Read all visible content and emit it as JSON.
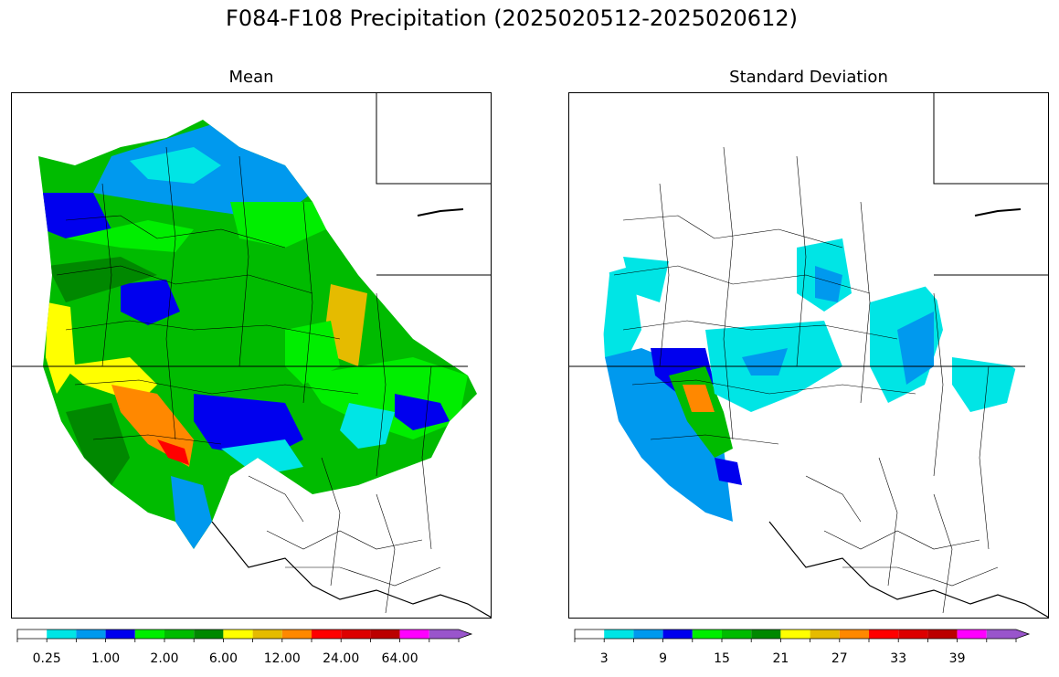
{
  "title": "F084-F108 Precipitation (2025020512-2025020612)",
  "panels": [
    {
      "title": "Mean",
      "colorbar": {
        "colors": [
          "#ffffff",
          "#00e5e5",
          "#0099ee",
          "#0000ee",
          "#00ee00",
          "#00bb00",
          "#008800",
          "#ffff00",
          "#e5bb00",
          "#ff8800",
          "#ff0000",
          "#dd0000",
          "#bb0000",
          "#ff00ff",
          "#9955cc"
        ],
        "tick_labels": [
          "0.25",
          "1.00",
          "2.00",
          "6.00",
          "12.00",
          "24.00",
          "64.00"
        ],
        "extend": "max"
      }
    },
    {
      "title": "Standard Deviation",
      "colorbar": {
        "colors": [
          "#ffffff",
          "#00e5e5",
          "#0099ee",
          "#0000ee",
          "#00ee00",
          "#00bb00",
          "#008800",
          "#ffff00",
          "#e5bb00",
          "#ff8800",
          "#ff0000",
          "#dd0000",
          "#bb0000",
          "#ff00ff",
          "#9955cc"
        ],
        "tick_labels": [
          "3",
          "9",
          "15",
          "21",
          "27",
          "33",
          "39"
        ],
        "extend": "max"
      }
    }
  ]
}
